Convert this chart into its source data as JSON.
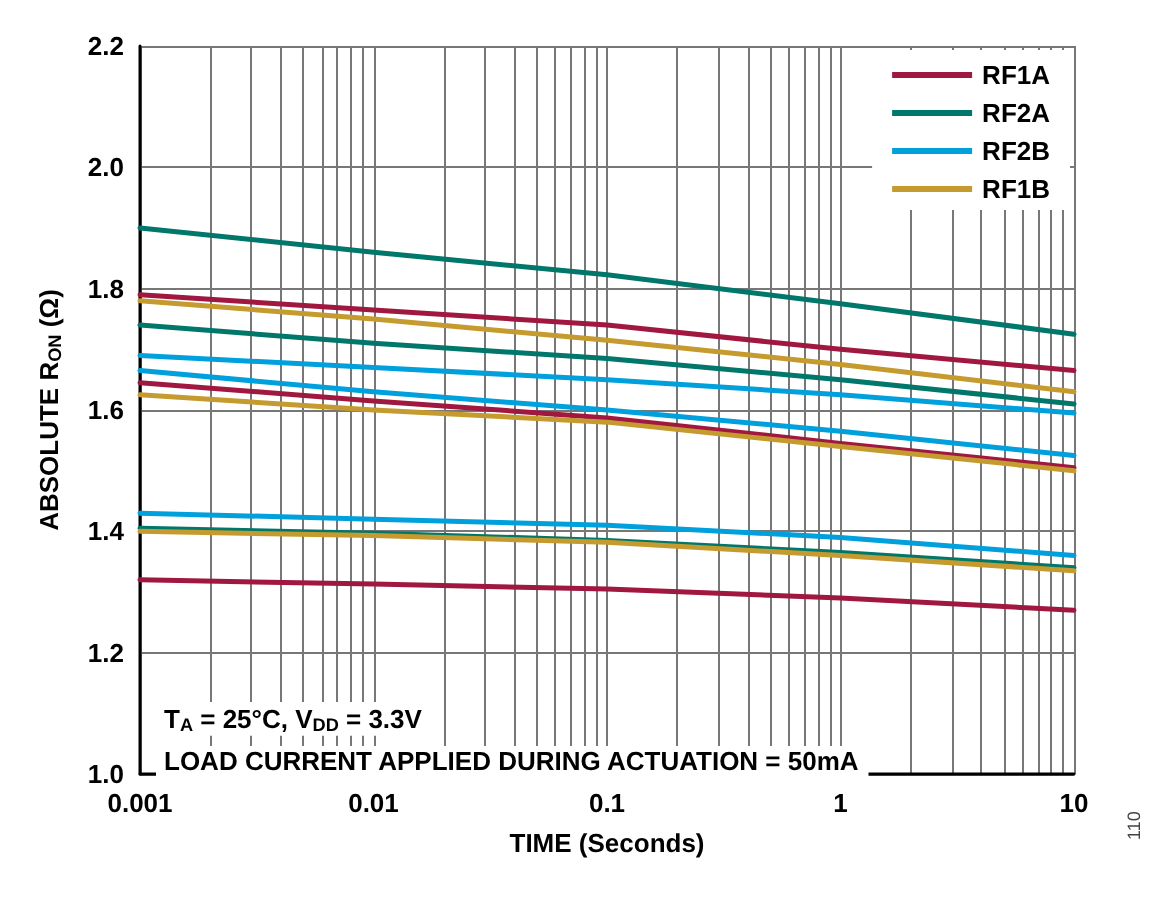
{
  "chart_data": {
    "type": "line",
    "xlabel": "TIME (Seconds)",
    "ylabel": "ABSOLUTE R$_{ON}$ (Ω)",
    "log": "x",
    "grid": true,
    "legend": "top right",
    "marker": "none",
    "line_style": "solid",
    "x": [
      0.001,
      0.01,
      0.1,
      1,
      10
    ],
    "xlim": [
      0.001,
      10
    ],
    "ylim": [
      1.0,
      2.2
    ],
    "xticks": [
      0.001,
      {
        "value": 0.002,
        "label": null
      },
      {
        "value": 0.003,
        "label": null
      },
      {
        "value": 0.004,
        "label": null
      },
      {
        "value": 0.005,
        "label": null
      },
      {
        "value": 0.006,
        "label": null
      },
      {
        "value": 0.007,
        "label": null
      },
      {
        "value": 0.008,
        "label": null
      },
      {
        "value": 0.009,
        "label": null
      },
      0.01,
      {
        "value": 0.02,
        "label": null
      },
      {
        "value": 0.03,
        "label": null
      },
      {
        "value": 0.04,
        "label": null
      },
      {
        "value": 0.05,
        "label": null
      },
      {
        "value": 0.06,
        "label": null
      },
      {
        "value": 0.07,
        "label": null
      },
      {
        "value": 0.08,
        "label": null
      },
      {
        "value": 0.09,
        "label": null
      },
      0.1,
      {
        "value": 0.2,
        "label": null
      },
      {
        "value": 0.3,
        "label": null
      },
      {
        "value": 0.4,
        "label": null
      },
      {
        "value": 0.5,
        "label": null
      },
      {
        "value": 0.6,
        "label": null
      },
      {
        "value": 0.7,
        "label": null
      },
      {
        "value": 0.8,
        "label": null
      },
      {
        "value": 0.9,
        "label": null
      },
      1,
      {
        "value": 2,
        "label": null
      },
      {
        "value": 3,
        "label": null
      },
      {
        "value": 4,
        "label": null
      },
      {
        "value": 5,
        "label": null
      },
      {
        "value": 6,
        "label": null
      },
      {
        "value": 7,
        "label": null
      },
      {
        "value": 8,
        "label": null
      },
      {
        "value": 9,
        "label": null
      },
      10
    ],
    "yticks": [
      {
        "value": 1.0,
        "label": "1.0"
      },
      1.2,
      1.4,
      1.6,
      1.8,
      {
        "value": 2.0,
        "label": "2.0"
      },
      2.2
    ],
    "series": [
      {
        "name": "RF1A",
        "color": "#a0183f",
        "values": [
          1.79,
          1.765,
          1.74,
          1.7,
          1.665
        ]
      },
      {
        "name": "RF2A",
        "color": "#00776a",
        "values": [
          1.9,
          1.86,
          1.823,
          1.775,
          1.725
        ]
      },
      {
        "name": "RF2B",
        "color": "#00a0dc",
        "values": [
          1.69,
          1.67,
          1.65,
          1.625,
          1.595
        ]
      },
      {
        "name": "RF1B",
        "color": "#c59a2e",
        "values": [
          1.78,
          1.75,
          1.715,
          1.675,
          1.63
        ]
      },
      {
        "color": "#a0183f",
        "values": [
          1.645,
          1.615,
          1.587,
          1.545,
          1.505
        ]
      },
      {
        "color": "#00776a",
        "values": [
          1.74,
          1.71,
          1.685,
          1.65,
          1.61
        ]
      },
      {
        "color": "#00a0dc",
        "values": [
          1.665,
          1.63,
          1.6,
          1.565,
          1.525
        ]
      },
      {
        "color": "#c59a2e",
        "values": [
          1.625,
          1.6,
          1.58,
          1.54,
          1.5
        ]
      },
      {
        "color": "#a0183f",
        "values": [
          1.32,
          1.313,
          1.305,
          1.29,
          1.27
        ]
      },
      {
        "color": "#00776a",
        "values": [
          1.405,
          1.397,
          1.385,
          1.365,
          1.34
        ]
      },
      {
        "color": "#00a0dc",
        "values": [
          1.43,
          1.42,
          1.41,
          1.39,
          1.36
        ]
      },
      {
        "color": "#c59a2e",
        "values": [
          1.4,
          1.393,
          1.382,
          1.36,
          1.335
        ]
      }
    ],
    "annotations": [
      "T$_{A}$ = 25°C, V$_{DD}$ = 3.3V",
      "LOAD CURRENT APPLIED DURING ACTUATION = 50mA",
      "110"
    ]
  }
}
